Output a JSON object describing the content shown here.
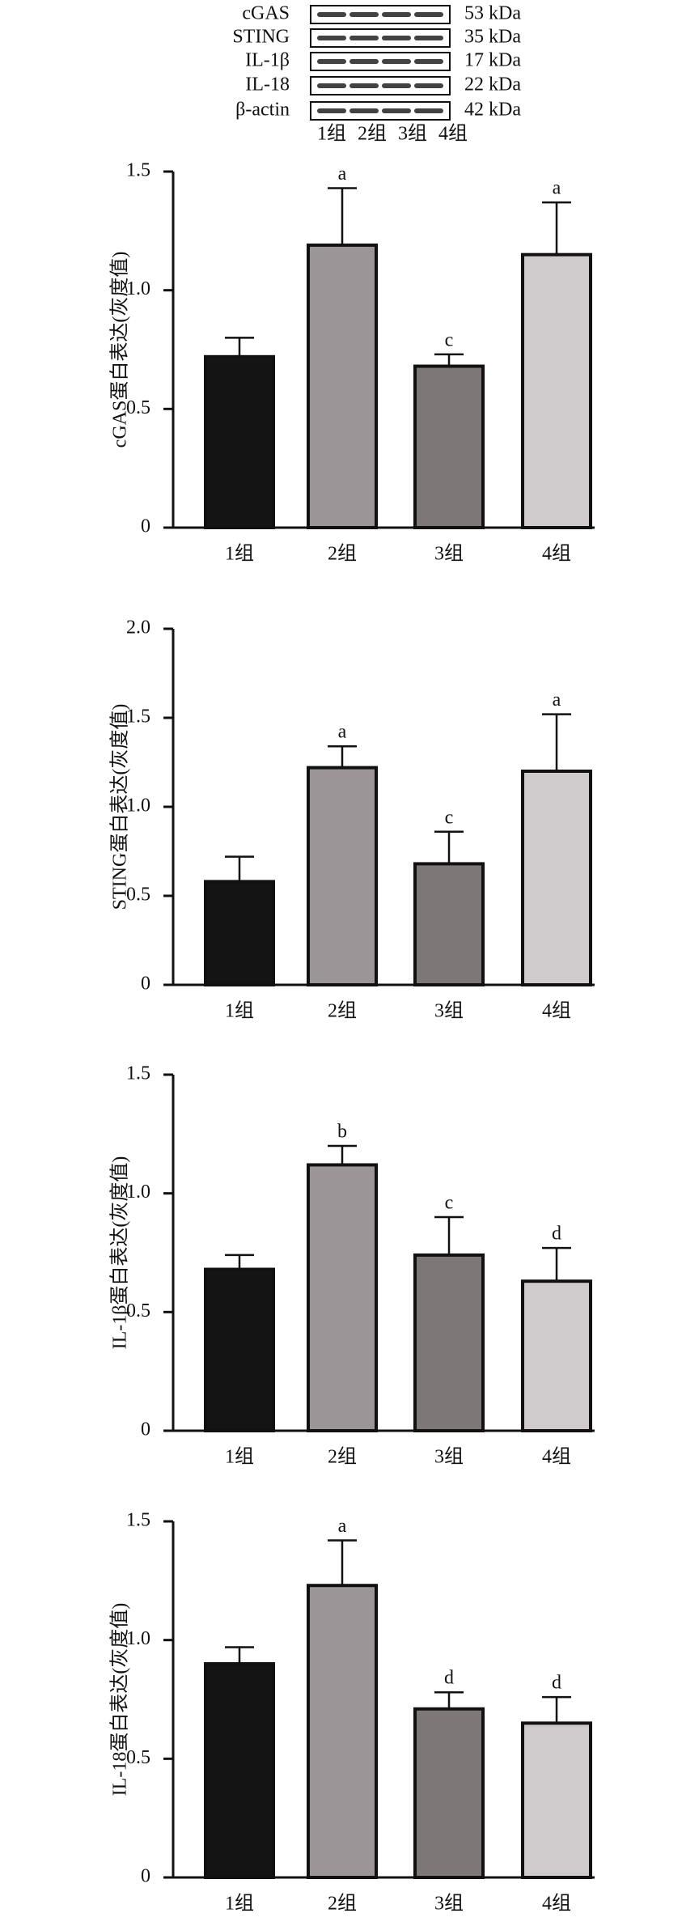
{
  "blot": {
    "rows": [
      {
        "label": "cGAS",
        "size": "53 kDa"
      },
      {
        "label": "STING",
        "size": "35 kDa"
      },
      {
        "label": "IL-1β",
        "size": "17 kDa"
      },
      {
        "label": "IL-18",
        "size": "22 kDa"
      },
      {
        "label": "β-actin",
        "size": "42 kDa"
      }
    ],
    "lanes": [
      "1组",
      "2组",
      "3组",
      "4组"
    ]
  },
  "chart_data": [
    {
      "type": "bar",
      "ylabel": "cGAS蛋白表达(灰度值)",
      "categories": [
        "1组",
        "2组",
        "3组",
        "4组"
      ],
      "values": [
        0.72,
        1.19,
        0.68,
        1.15
      ],
      "errors": [
        0.08,
        0.24,
        0.05,
        0.22
      ],
      "sig_labels": [
        null,
        "a",
        "c",
        "a"
      ],
      "colors": [
        "#141414",
        "#9b9597",
        "#7e7778",
        "#cfcbcc"
      ],
      "ylim": [
        0,
        1.5
      ],
      "yticks": [
        0,
        0.5,
        {
          "value": 1,
          "label": "1.0"
        },
        1.5
      ]
    },
    {
      "type": "bar",
      "ylabel": "STING蛋白表达(灰度值)",
      "categories": [
        "1组",
        "2组",
        "3组",
        "4组"
      ],
      "values": [
        0.58,
        1.22,
        0.68,
        1.2
      ],
      "errors": [
        0.14,
        0.12,
        0.18,
        0.32
      ],
      "sig_labels": [
        null,
        "a",
        "c",
        "a"
      ],
      "colors": [
        "#141414",
        "#9b9597",
        "#7e7778",
        "#cfcbcc"
      ],
      "ylim": [
        0,
        2
      ],
      "yticks": [
        0,
        0.5,
        {
          "value": 1,
          "label": "1.0"
        },
        1.5,
        {
          "value": 2,
          "label": "2.0"
        }
      ]
    },
    {
      "type": "bar",
      "ylabel": "IL-1β蛋白表达(灰度值)",
      "categories": [
        "1组",
        "2组",
        "3组",
        "4组"
      ],
      "values": [
        0.68,
        1.12,
        0.74,
        0.63
      ],
      "errors": [
        0.06,
        0.08,
        0.16,
        0.14
      ],
      "sig_labels": [
        null,
        "b",
        "c",
        "d"
      ],
      "colors": [
        "#141414",
        "#9b9597",
        "#7e7778",
        "#cfcbcc"
      ],
      "ylim": [
        0,
        1.5
      ],
      "yticks": [
        0,
        0.5,
        {
          "value": 1,
          "label": "1.0"
        },
        1.5
      ]
    },
    {
      "type": "bar",
      "ylabel": "IL-18蛋白表达(灰度值)",
      "categories": [
        "1组",
        "2组",
        "3组",
        "4组"
      ],
      "values": [
        0.9,
        1.23,
        0.71,
        0.65
      ],
      "errors": [
        0.07,
        0.19,
        0.07,
        0.11
      ],
      "sig_labels": [
        null,
        "a",
        "d",
        "d"
      ],
      "colors": [
        "#141414",
        "#9b9597",
        "#7e7778",
        "#cfcbcc"
      ],
      "ylim": [
        0,
        1.5
      ],
      "yticks": [
        0,
        0.5,
        {
          "value": 1,
          "label": "1.0"
        },
        1.5
      ]
    }
  ]
}
